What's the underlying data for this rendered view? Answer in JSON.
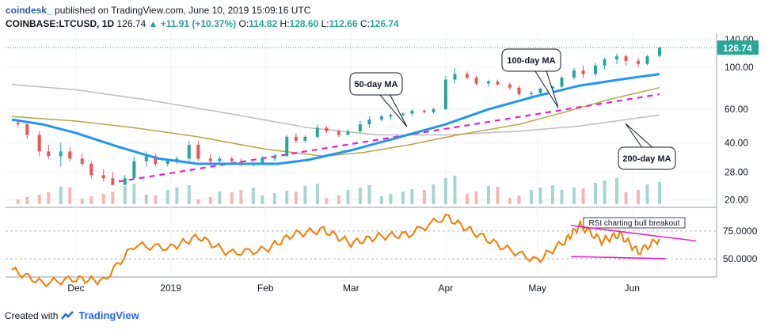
{
  "header": {
    "brand": "coindesk_",
    "published": "published on TradingView.com, June 10, 2019 15:09:16 UTC",
    "symbol": "COINBASE:LTCUSD, 1D",
    "last": "126.74",
    "change": "▲ +11.91 (+10.37%)",
    "o_label": "O:",
    "o": "114.82",
    "h_label": "H:",
    "h": "128.60",
    "l_label": "L:",
    "l": "112.66",
    "c_label": "C:",
    "c": "126.74"
  },
  "footer": {
    "created_with": "Created with",
    "logo_text": "TradingView"
  },
  "colors": {
    "up": "#26a69a",
    "down": "#ef5350",
    "ma50": "#2196f3",
    "ma100": "#b5a642",
    "ma200": "#bdbdbd",
    "trend": "#e91ecf",
    "rsi": "#f57c00"
  },
  "chart_data": {
    "type": "candlestick",
    "x_tick_labels": [
      "Dec",
      "2019",
      "Feb",
      "Mar",
      "Apr",
      "May",
      "Jun"
    ],
    "x_tick_dates": [
      "2018-12-01",
      "2019-01-01",
      "2019-02-01",
      "2019-03-01",
      "2019-04-01",
      "2019-05-01",
      "2019-06-01"
    ],
    "date_range": [
      "2018-11-10",
      "2019-06-10"
    ],
    "price_axis": {
      "scale": "log",
      "range": [
        19,
        148
      ],
      "ticks": [
        "140.00",
        "100.00",
        "60.00",
        "40.00",
        "28.00",
        "20.00"
      ],
      "tick_values": [
        140,
        100,
        60,
        40,
        28,
        20
      ],
      "last_price_label": "126.74",
      "last_price": 126.74
    },
    "ma50": [
      [
        "2018-11-10",
        53
      ],
      [
        "2018-11-20",
        50
      ],
      [
        "2018-12-01",
        45
      ],
      [
        "2018-12-15",
        38
      ],
      [
        "2018-12-28",
        33
      ],
      [
        "2019-01-10",
        31
      ],
      [
        "2019-01-25",
        31
      ],
      [
        "2019-02-05",
        31
      ],
      [
        "2019-02-15",
        32.5
      ],
      [
        "2019-03-01",
        36.5
      ],
      [
        "2019-03-15",
        42
      ],
      [
        "2019-04-01",
        50
      ],
      [
        "2019-04-15",
        60
      ],
      [
        "2019-04-30",
        70
      ],
      [
        "2019-05-15",
        80
      ],
      [
        "2019-05-30",
        87
      ],
      [
        "2019-06-10",
        92
      ]
    ],
    "ma100": [
      [
        "2018-11-10",
        55
      ],
      [
        "2018-12-01",
        52
      ],
      [
        "2018-12-20",
        48
      ],
      [
        "2019-01-10",
        43
      ],
      [
        "2019-02-01",
        37
      ],
      [
        "2019-02-20",
        34
      ],
      [
        "2019-03-05",
        35.5
      ],
      [
        "2019-03-20",
        39
      ],
      [
        "2019-04-05",
        44
      ],
      [
        "2019-04-25",
        50
      ],
      [
        "2019-05-10",
        58
      ],
      [
        "2019-05-25",
        68
      ],
      [
        "2019-06-10",
        78
      ]
    ],
    "ma200": [
      [
        "2018-11-10",
        81
      ],
      [
        "2018-12-01",
        76
      ],
      [
        "2018-12-25",
        67
      ],
      [
        "2019-01-20",
        57
      ],
      [
        "2019-02-15",
        48
      ],
      [
        "2019-03-10",
        44
      ],
      [
        "2019-04-01",
        44
      ],
      [
        "2019-04-25",
        46
      ],
      [
        "2019-05-15",
        49
      ],
      [
        "2019-06-10",
        56
      ]
    ],
    "candles": [
      [
        "2018-11-12",
        51,
        53,
        48,
        50
      ],
      [
        "2018-11-15",
        50,
        52,
        42,
        44
      ],
      [
        "2018-11-19",
        44,
        46,
        34,
        36
      ],
      [
        "2018-11-22",
        36,
        39,
        33,
        34
      ],
      [
        "2018-11-26",
        34,
        40,
        30,
        36
      ],
      [
        "2018-11-29",
        36,
        38,
        32,
        33
      ],
      [
        "2018-12-03",
        33,
        35,
        30,
        31
      ],
      [
        "2018-12-06",
        31,
        32,
        26,
        27
      ],
      [
        "2018-12-10",
        27,
        29,
        25,
        26
      ],
      [
        "2018-12-13",
        26,
        28,
        24,
        24
      ],
      [
        "2018-12-17",
        24,
        27,
        24,
        26
      ],
      [
        "2018-12-20",
        26,
        34,
        26,
        32
      ],
      [
        "2018-12-24",
        32,
        36,
        30,
        34
      ],
      [
        "2018-12-27",
        34,
        35,
        30,
        31
      ],
      [
        "2018-12-31",
        31,
        33,
        30,
        32
      ],
      [
        "2019-01-03",
        32,
        34,
        31,
        33
      ],
      [
        "2019-01-07",
        33,
        41,
        32,
        39
      ],
      [
        "2019-01-10",
        39,
        41,
        32,
        33
      ],
      [
        "2019-01-14",
        33,
        35,
        31,
        32
      ],
      [
        "2019-01-17",
        32,
        34,
        31,
        33
      ],
      [
        "2019-01-21",
        33,
        34,
        31,
        32
      ],
      [
        "2019-01-24",
        32,
        33,
        30,
        31
      ],
      [
        "2019-01-28",
        31,
        32,
        30,
        31
      ],
      [
        "2019-01-31",
        31,
        34,
        31,
        33
      ],
      [
        "2019-02-04",
        33,
        35,
        32,
        34
      ],
      [
        "2019-02-08",
        34,
        44,
        34,
        43
      ],
      [
        "2019-02-11",
        43,
        45,
        40,
        41
      ],
      [
        "2019-02-14",
        41,
        44,
        40,
        43
      ],
      [
        "2019-02-18",
        43,
        50,
        42,
        48
      ],
      [
        "2019-02-21",
        48,
        49,
        45,
        46
      ],
      [
        "2019-02-25",
        46,
        47,
        43,
        44
      ],
      [
        "2019-02-28",
        44,
        47,
        44,
        46
      ],
      [
        "2019-03-04",
        46,
        52,
        45,
        50
      ],
      [
        "2019-03-07",
        50,
        55,
        48,
        53
      ],
      [
        "2019-03-11",
        53,
        56,
        52,
        55
      ],
      [
        "2019-03-14",
        55,
        57,
        53,
        56
      ],
      [
        "2019-03-18",
        56,
        58,
        55,
        57
      ],
      [
        "2019-03-21",
        57,
        60,
        55,
        59
      ],
      [
        "2019-03-25",
        59,
        60,
        57,
        58
      ],
      [
        "2019-03-28",
        58,
        61,
        57,
        60
      ],
      [
        "2019-04-01",
        60,
        90,
        60,
        86
      ],
      [
        "2019-04-04",
        86,
        99,
        82,
        92
      ],
      [
        "2019-04-08",
        92,
        95,
        86,
        88
      ],
      [
        "2019-04-11",
        88,
        90,
        80,
        82
      ],
      [
        "2019-04-15",
        82,
        86,
        79,
        84
      ],
      [
        "2019-04-18",
        84,
        86,
        80,
        81
      ],
      [
        "2019-04-22",
        81,
        83,
        76,
        78
      ],
      [
        "2019-04-25",
        78,
        80,
        70,
        72
      ],
      [
        "2019-04-29",
        72,
        75,
        70,
        73
      ],
      [
        "2019-05-02",
        73,
        78,
        72,
        77
      ],
      [
        "2019-05-06",
        77,
        80,
        75,
        79
      ],
      [
        "2019-05-09",
        79,
        90,
        78,
        88
      ],
      [
        "2019-05-13",
        88,
        99,
        86,
        96
      ],
      [
        "2019-05-16",
        96,
        102,
        88,
        92
      ],
      [
        "2019-05-20",
        92,
        106,
        90,
        102
      ],
      [
        "2019-05-23",
        102,
        112,
        98,
        110
      ],
      [
        "2019-05-27",
        110,
        118,
        104,
        114
      ],
      [
        "2019-05-30",
        114,
        116,
        102,
        108
      ],
      [
        "2019-06-03",
        108,
        112,
        100,
        104
      ],
      [
        "2019-06-06",
        104,
        116,
        102,
        114
      ],
      [
        "2019-06-10",
        114.82,
        128.6,
        112.66,
        126.74
      ]
    ],
    "rsi": {
      "range": [
        35,
        92
      ],
      "tick_labels": [
        "75.0000",
        "50.0000"
      ],
      "tick_values": [
        75,
        50
      ],
      "series": [
        [
          "2018-11-10",
          40
        ],
        [
          "2018-11-20",
          28
        ],
        [
          "2018-12-01",
          32
        ],
        [
          "2018-12-10",
          30
        ],
        [
          "2018-12-20",
          62
        ],
        [
          "2019-01-01",
          60
        ],
        [
          "2019-01-10",
          70
        ],
        [
          "2019-01-20",
          55
        ],
        [
          "2019-02-01",
          58
        ],
        [
          "2019-02-10",
          72
        ],
        [
          "2019-02-20",
          76
        ],
        [
          "2019-03-01",
          64
        ],
        [
          "2019-03-10",
          70
        ],
        [
          "2019-03-20",
          72
        ],
        [
          "2019-04-01",
          88
        ],
        [
          "2019-04-10",
          74
        ],
        [
          "2019-04-20",
          60
        ],
        [
          "2019-05-01",
          48
        ],
        [
          "2019-05-10",
          66
        ],
        [
          "2019-05-15",
          80
        ],
        [
          "2019-05-22",
          66
        ],
        [
          "2019-05-28",
          72
        ],
        [
          "2019-06-03",
          56
        ],
        [
          "2019-06-10",
          68
        ]
      ]
    },
    "annotations": [
      "50-day MA",
      "100-day MA",
      "200-day MA",
      "RSI charting bull breakout"
    ]
  }
}
